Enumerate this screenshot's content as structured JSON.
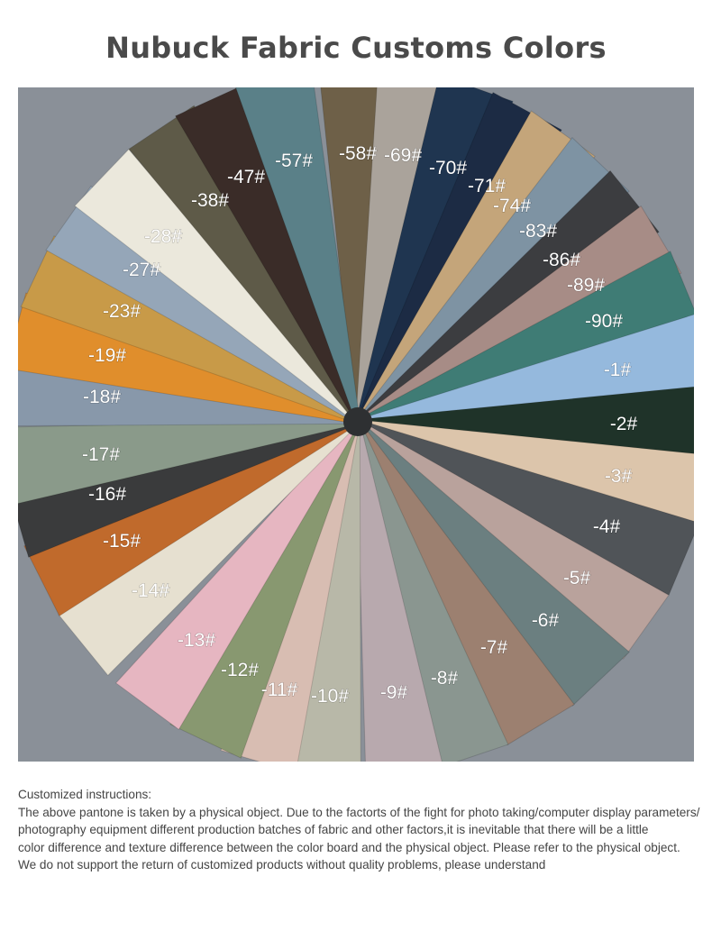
{
  "title": "Nubuck Fabric Customs Colors",
  "swatches": [
    {
      "label": "-58#",
      "color": "#6e6048"
    },
    {
      "label": "-69#",
      "color": "#aaa39b"
    },
    {
      "label": "-70#",
      "color": "#1f3550"
    },
    {
      "label": "-71#",
      "color": "#1c2b44"
    },
    {
      "label": "-74#",
      "color": "#c4a57a"
    },
    {
      "label": "-83#",
      "color": "#7e93a3"
    },
    {
      "label": "-86#",
      "color": "#3c3d40"
    },
    {
      "label": "-89#",
      "color": "#a78c86"
    },
    {
      "label": "-90#",
      "color": "#3f7c75"
    },
    {
      "label": "-1#",
      "color": "#95b9dd"
    },
    {
      "label": "-2#",
      "color": "#1f3329"
    },
    {
      "label": "-3#",
      "color": "#dcc5ab"
    },
    {
      "label": "-4#",
      "color": "#505458"
    },
    {
      "label": "-5#",
      "color": "#b9a29c"
    },
    {
      "label": "-6#",
      "color": "#6b7f80"
    },
    {
      "label": "-7#",
      "color": "#9c8070"
    },
    {
      "label": "-8#",
      "color": "#8a9690"
    },
    {
      "label": "-9#",
      "color": "#b8a9ae"
    },
    {
      "label": "-10#",
      "color": "#b8b8a8"
    },
    {
      "label": "-11#",
      "color": "#d8bdb2"
    },
    {
      "label": "-12#",
      "color": "#889870"
    },
    {
      "label": "-13#",
      "color": "#e6b6c1"
    },
    {
      "label": "-14#",
      "color": "#e6e0d0"
    },
    {
      "label": "-15#",
      "color": "#c06a2c"
    },
    {
      "label": "-16#",
      "color": "#3a3b3c"
    },
    {
      "label": "-17#",
      "color": "#8a9a8a"
    },
    {
      "label": "-18#",
      "color": "#8898aa"
    },
    {
      "label": "-19#",
      "color": "#e08e2c"
    },
    {
      "label": "-23#",
      "color": "#c89a48"
    },
    {
      "label": "-27#",
      "color": "#95a6b8"
    },
    {
      "label": "-28#",
      "color": "#ebe8dc"
    },
    {
      "label": "-38#",
      "color": "#5e5a48"
    },
    {
      "label": "-47#",
      "color": "#3a2c28"
    },
    {
      "label": "-57#",
      "color": "#5a8088"
    }
  ],
  "background_color": "#8a9098",
  "notes": {
    "heading": "Customized instructions:",
    "lines": [
      "The above pantone is taken by a physical object. Due to the factorts of the fight for photo taking/computer display parameters/",
      "photography equipment different production batches of fabric and other factors,it is inevitable that there will be a little",
      "color difference and texture difference between the color board and the physical object. Please refer to the physical object.",
      "We do not support the return of customized products without quality problems, please understand"
    ]
  }
}
